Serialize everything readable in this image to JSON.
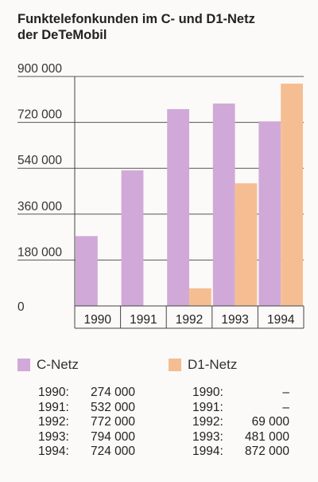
{
  "title_lines": [
    "Funktelefonkunden im C- und D1-Netz",
    "der DeTeMobil"
  ],
  "colors": {
    "c_netz": "#d1a9d8",
    "d1_netz": "#f5be92"
  },
  "chart_data": {
    "type": "bar",
    "categories": [
      "1990",
      "1991",
      "1992",
      "1993",
      "1994"
    ],
    "series": [
      {
        "name": "C-Netz",
        "values": [
          274000,
          532000,
          772000,
          794000,
          724000
        ]
      },
      {
        "name": "D1-Netz",
        "values": [
          0,
          0,
          69000,
          481000,
          872000
        ]
      }
    ],
    "ylim": [
      0,
      900000
    ],
    "yticks": [
      0,
      180000,
      360000,
      540000,
      720000,
      900000
    ],
    "ytick_labels": [
      "0",
      "180 000",
      "360 000",
      "540 000",
      "720 000",
      "900 000"
    ],
    "grid": true,
    "legend": "bottom"
  },
  "legend": [
    {
      "label": "C-Netz"
    },
    {
      "label": "D1-Netz"
    }
  ],
  "table_c": [
    {
      "year": "1990:",
      "value": "274 000"
    },
    {
      "year": "1991:",
      "value": "532 000"
    },
    {
      "year": "1992:",
      "value": "772 000"
    },
    {
      "year": "1993:",
      "value": "794 000"
    },
    {
      "year": "1994:",
      "value": "724 000"
    }
  ],
  "table_d1": [
    {
      "year": "1990:",
      "value": "–"
    },
    {
      "year": "1991:",
      "value": "–"
    },
    {
      "year": "1992:",
      "value": "69 000"
    },
    {
      "year": "1993:",
      "value": "481 000"
    },
    {
      "year": "1994:",
      "value": "872 000"
    }
  ]
}
